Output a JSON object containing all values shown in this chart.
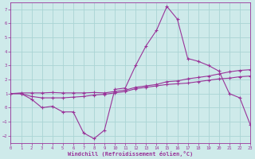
{
  "xlabel": "Windchill (Refroidissement éolien,°C)",
  "bg_color": "#ceeaea",
  "grid_color": "#aad4d4",
  "line_color": "#993399",
  "xlim": [
    0,
    23
  ],
  "ylim": [
    -2.5,
    7.5
  ],
  "xticks": [
    0,
    1,
    2,
    3,
    4,
    5,
    6,
    7,
    8,
    9,
    10,
    11,
    12,
    13,
    14,
    15,
    16,
    17,
    18,
    19,
    20,
    21,
    22,
    23
  ],
  "yticks": [
    -2,
    -1,
    0,
    1,
    2,
    3,
    4,
    5,
    6,
    7
  ],
  "line1_x": [
    0,
    1,
    2,
    3,
    4,
    5,
    6,
    7,
    8,
    9,
    10,
    11,
    12,
    13,
    14,
    15,
    16,
    17,
    18,
    19,
    20,
    21,
    22,
    23
  ],
  "line1_y": [
    1.0,
    1.0,
    0.6,
    0.0,
    0.1,
    -0.3,
    -0.3,
    -1.8,
    -2.2,
    -1.6,
    1.3,
    1.4,
    3.0,
    4.4,
    5.5,
    7.2,
    6.3,
    3.5,
    3.3,
    3.0,
    2.6,
    1.0,
    0.7,
    -1.2
  ],
  "line2_x": [
    0,
    1,
    2,
    3,
    4,
    5,
    6,
    7,
    8,
    9,
    10,
    11,
    12,
    13,
    14,
    15,
    16,
    17,
    18,
    19,
    20,
    21,
    22,
    23
  ],
  "line2_y": [
    1.0,
    1.0,
    0.8,
    0.7,
    0.7,
    0.7,
    0.75,
    0.8,
    0.9,
    0.95,
    1.05,
    1.15,
    1.35,
    1.45,
    1.55,
    1.65,
    1.7,
    1.75,
    1.85,
    1.95,
    2.05,
    2.1,
    2.2,
    2.25
  ],
  "line3_x": [
    0,
    1,
    2,
    3,
    4,
    5,
    6,
    7,
    8,
    9,
    10,
    11,
    12,
    13,
    14,
    15,
    16,
    17,
    18,
    19,
    20,
    21,
    22,
    23
  ],
  "line3_y": [
    1.0,
    1.05,
    1.05,
    1.05,
    1.08,
    1.05,
    1.05,
    1.05,
    1.08,
    1.05,
    1.15,
    1.25,
    1.45,
    1.55,
    1.65,
    1.85,
    1.9,
    2.05,
    2.15,
    2.25,
    2.4,
    2.55,
    2.65,
    2.7
  ]
}
